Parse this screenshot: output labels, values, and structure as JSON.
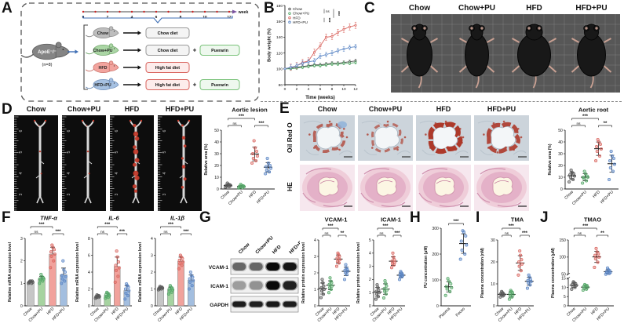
{
  "panel_letters": {
    "a": "A",
    "b": "B",
    "c": "C",
    "d": "D",
    "e": "E",
    "f": "F",
    "g": "G",
    "h": "H",
    "i": "I",
    "j": "J"
  },
  "groups": [
    "Chow",
    "Chow+PU",
    "HFD",
    "HFD+PU"
  ],
  "style": {
    "point_colors": [
      "#595959",
      "#55a868",
      "#d9655f",
      "#5b86c5"
    ],
    "bar_colors": [
      "#c6c6c6",
      "#a6d3a0",
      "#f1a29c",
      "#a3bedf"
    ],
    "mouse_fills": [
      "#bdbdbd",
      "#abd6a5",
      "#f2a49e",
      "#a6c1e2"
    ],
    "mouse_strokes": [
      "#8d8d8d",
      "#77aa71",
      "#cc756d",
      "#7291bb"
    ],
    "accent_blue": "#3f6fb5",
    "timeline_dot": "#cc2222",
    "arrow_purple": "#7a52a0",
    "plaque_red": "#c23a2b",
    "chow_box": "#9a9a9a",
    "hfd_box": "#d9655f",
    "pu_box": "#79c279"
  },
  "panel_a": {
    "founder": {
      "strain": "ApoE⁻/⁻",
      "n": "(n=8)"
    },
    "timeline": {
      "ticks": [
        0,
        2,
        4,
        6,
        8,
        10,
        12
      ],
      "unit": "week"
    },
    "plus_sign": "+",
    "rows": [
      {
        "group": "Chow",
        "diet": "Chow diet",
        "diet_type": "chow",
        "supplement": null
      },
      {
        "group": "Chow+PU",
        "diet": "Chow diet",
        "diet_type": "chow",
        "supplement": "Puerarin"
      },
      {
        "group": "HFD",
        "diet": "High fat diet",
        "diet_type": "hfd",
        "supplement": null
      },
      {
        "group": "HFD+PU",
        "diet": "High fat diet",
        "diet_type": "hfd",
        "supplement": "Puerarin"
      }
    ]
  },
  "panel_c": {
    "labels": [
      "Chow",
      "Chow+PU",
      "HFD",
      "HFD+PU"
    ]
  },
  "panel_d": {
    "labels": [
      "Chow",
      "Chow+PU",
      "HFD",
      "HFD+PU"
    ],
    "ruler_numbers": [
      "6",
      "5",
      "4",
      "3"
    ],
    "lesion_levels": [
      0.08,
      0.1,
      1,
      0.55
    ]
  },
  "panel_e": {
    "row_labels": [
      "Oil Red O",
      "HE"
    ],
    "col_labels": [
      "Chow",
      "Chow+PU",
      "HFD",
      "HFD+PU"
    ],
    "oil_levels": [
      0.45,
      0.3,
      1,
      0.8
    ]
  },
  "panel_g": {
    "lanes": [
      "Chow",
      "Chow+PU",
      "HFD",
      "HFD+PU"
    ],
    "bands": [
      "VCAM-1",
      "ICAM-1",
      "GAPDH"
    ],
    "band_intensities": [
      [
        0.5,
        0.5,
        1,
        0.92
      ],
      [
        0.28,
        0.32,
        1,
        0.85
      ],
      [
        0.88,
        0.86,
        0.9,
        0.88
      ]
    ],
    "band_heights": [
      10,
      11,
      7
    ]
  },
  "chart_data": [
    {
      "id": "body_weight",
      "type": "line",
      "title": "",
      "xlabel": "Time (weeks)",
      "ylabel": "Body weight (%)",
      "xlim": [
        0,
        12
      ],
      "xticks": [
        0,
        2,
        4,
        6,
        8,
        10,
        12
      ],
      "ylim": [
        80,
        180
      ],
      "yticks": [
        80,
        100,
        120,
        140,
        160,
        180
      ],
      "x": [
        0,
        1,
        2,
        3,
        4,
        5,
        6,
        7,
        8,
        9,
        10,
        11,
        12
      ],
      "series": [
        {
          "name": "Chow",
          "color": "#4d4d4d",
          "err": 2,
          "values": [
            100,
            101,
            102,
            103,
            104,
            105,
            105,
            106,
            107,
            107,
            108,
            109,
            110
          ]
        },
        {
          "name": "Chow+PU",
          "color": "#55a868",
          "err": 2,
          "values": [
            100,
            100,
            101,
            102,
            103,
            104,
            104,
            105,
            106,
            106,
            107,
            107,
            108
          ]
        },
        {
          "name": "HFD",
          "color": "#d9655f",
          "err": 4,
          "values": [
            100,
            102,
            104,
            108,
            110,
            121,
            129,
            140,
            141,
            146,
            150,
            153,
            155
          ]
        },
        {
          "name": "HFD+PU",
          "color": "#5b86c5",
          "err": 3,
          "values": [
            100,
            102,
            104,
            107,
            109,
            110,
            116,
            118,
            120,
            123,
            125,
            127,
            128
          ]
        }
      ],
      "legend_sig": [
        "ns",
        "***",
        "***"
      ],
      "legend_position": "top-left",
      "grid": false
    },
    {
      "id": "aortic_lesion",
      "type": "scatter",
      "title": "Aortic lesion",
      "ylabel": "Relative area (%)",
      "ylim": [
        0,
        50
      ],
      "yticks": [
        0,
        10,
        20,
        30,
        40,
        50
      ],
      "categories": [
        "Chow",
        "Chow+PU",
        "HFD",
        "HFD+PU"
      ],
      "groups": [
        {
          "points": [
            1.5,
            2,
            2.3,
            2.8,
            3,
            3.5,
            4,
            5
          ]
        },
        {
          "points": [
            0.8,
            1.2,
            1.6,
            2,
            2.2,
            2.6,
            3,
            3.8
          ]
        },
        {
          "points": [
            22,
            24,
            26,
            28,
            30,
            32,
            35,
            41
          ]
        },
        {
          "points": [
            13,
            14.5,
            16,
            17.5,
            19,
            20,
            22,
            26
          ]
        }
      ],
      "sig": [
        {
          "a": 0,
          "b": 2,
          "label": "***",
          "row": 1
        },
        {
          "a": 0,
          "b": 1,
          "label": "ns",
          "row": 0
        },
        {
          "a": 2,
          "b": 3,
          "label": "***",
          "row": 0
        }
      ]
    },
    {
      "id": "aortic_root",
      "type": "scatter",
      "title": "Aortic root",
      "ylabel": "Relative area (%)",
      "ylim": [
        0,
        50
      ],
      "yticks": [
        0,
        10,
        20,
        30,
        40,
        50
      ],
      "categories": [
        "Chow",
        "Chow+PU",
        "HFD",
        "HFD+PU"
      ],
      "groups": [
        {
          "points": [
            6,
            8,
            10,
            11,
            12,
            13,
            14,
            16
          ]
        },
        {
          "points": [
            5,
            7,
            9,
            10,
            10,
            11,
            13,
            15
          ]
        },
        {
          "points": [
            24,
            28,
            32,
            34,
            36,
            38,
            40,
            42
          ]
        },
        {
          "points": [
            8,
            15,
            18,
            21,
            24,
            26,
            28,
            32
          ]
        }
      ],
      "sig": [
        {
          "a": 0,
          "b": 2,
          "label": "***",
          "row": 1
        },
        {
          "a": 0,
          "b": 1,
          "label": "ns",
          "row": 0
        },
        {
          "a": 2,
          "b": 3,
          "label": "**",
          "row": 0
        }
      ]
    },
    {
      "id": "tnf_alpha",
      "type": "bar",
      "title": "TNF-α",
      "title_italic": true,
      "ylabel": "Relative mRNA expression level",
      "ylim": [
        0,
        3
      ],
      "yticks": [
        0,
        1,
        2,
        3
      ],
      "categories": [
        "Chow",
        "Chow+PU",
        "HFD",
        "HFD+PU"
      ],
      "groups": [
        {
          "points": [
            1,
            1,
            1.05,
            1.05,
            1.05,
            1.1,
            1.1,
            1.1
          ]
        },
        {
          "points": [
            1,
            1.1,
            1.15,
            1.2,
            1.2,
            1.25,
            1.3,
            1.4
          ]
        },
        {
          "points": [
            1.7,
            2,
            2.2,
            2.3,
            2.4,
            2.5,
            2.6,
            2.7
          ]
        },
        {
          "points": [
            1,
            1.1,
            1.2,
            1.3,
            1.35,
            1.5,
            1.6,
            2
          ]
        }
      ],
      "sig": [
        {
          "a": 0,
          "b": 2,
          "label": "***",
          "row": 1
        },
        {
          "a": 0,
          "b": 1,
          "label": "ns",
          "row": 0
        },
        {
          "a": 2,
          "b": 3,
          "label": "***",
          "row": 0
        }
      ]
    },
    {
      "id": "il6",
      "type": "bar",
      "title": "IL-6",
      "title_italic": true,
      "ylabel": "Relative mRNA expression level",
      "ylim": [
        0,
        8
      ],
      "yticks": [
        0,
        2,
        4,
        6,
        8
      ],
      "categories": [
        "Chow",
        "Chow+PU",
        "HFD",
        "HFD+PU"
      ],
      "groups": [
        {
          "points": [
            0.9,
            1,
            1,
            1.1,
            1.1,
            1.2,
            1.2,
            1.3
          ]
        },
        {
          "points": [
            0.9,
            1,
            1.1,
            1.2,
            1.3,
            1.4,
            1.5,
            1.6
          ]
        },
        {
          "points": [
            2.8,
            3.5,
            4.2,
            4.5,
            4.8,
            5.2,
            5.8,
            6.5
          ]
        },
        {
          "points": [
            0.8,
            1.2,
            1.5,
            1.8,
            2,
            2.2,
            2.4,
            2.6
          ]
        }
      ],
      "sig": [
        {
          "a": 0,
          "b": 2,
          "label": "***",
          "row": 1
        },
        {
          "a": 0,
          "b": 1,
          "label": "ns",
          "row": 0
        },
        {
          "a": 2,
          "b": 3,
          "label": "***",
          "row": 0
        }
      ]
    },
    {
      "id": "il1b",
      "type": "bar",
      "title": "IL-1β",
      "title_italic": true,
      "ylabel": "Relative mRNA expression level",
      "ylim": [
        0,
        4
      ],
      "yticks": [
        0,
        1,
        2,
        3,
        4
      ],
      "categories": [
        "Chow",
        "Chow+PU",
        "HFD",
        "HFD+PU"
      ],
      "groups": [
        {
          "points": [
            0.95,
            1,
            1,
            1.05,
            1.05,
            1.1,
            1.1,
            1.15
          ]
        },
        {
          "points": [
            0.7,
            0.8,
            0.9,
            0.95,
            1,
            1.05,
            1.1,
            1.2
          ]
        },
        {
          "points": [
            2.2,
            2.4,
            2.5,
            2.6,
            2.7,
            2.8,
            2.9,
            3
          ]
        },
        {
          "points": [
            1,
            1.2,
            1.4,
            1.5,
            1.6,
            1.7,
            1.8,
            2
          ]
        }
      ],
      "sig": [
        {
          "a": 0,
          "b": 2,
          "label": "***",
          "row": 1
        },
        {
          "a": 0,
          "b": 1,
          "label": "ns",
          "row": 0
        },
        {
          "a": 2,
          "b": 3,
          "label": "***",
          "row": 0
        }
      ]
    },
    {
      "id": "vcam1",
      "type": "scatter",
      "title": "VCAM-1",
      "ylabel": "Relative protein expression level",
      "ylim": [
        0,
        4
      ],
      "yticks": [
        0,
        1,
        2,
        3,
        4
      ],
      "categories": [
        "Chow",
        "Chow+PU",
        "HFD",
        "HFD+PU"
      ],
      "groups": [
        {
          "points": [
            0.5,
            0.7,
            0.9,
            1,
            1.1,
            1.2,
            1.4,
            1.6
          ]
        },
        {
          "points": [
            0.8,
            1,
            1.1,
            1.2,
            1.3,
            1.4,
            1.5,
            1.7
          ]
        },
        {
          "points": [
            2.4,
            2.6,
            2.7,
            2.8,
            2.9,
            3,
            3.1,
            3.2
          ]
        },
        {
          "points": [
            1.6,
            1.9,
            2,
            2.1,
            2.15,
            2.2,
            2.3,
            2.5
          ]
        }
      ],
      "sig": [
        {
          "a": 0,
          "b": 2,
          "label": "***",
          "row": 1
        },
        {
          "a": 0,
          "b": 1,
          "label": "ns",
          "row": 0
        },
        {
          "a": 2,
          "b": 3,
          "label": "**",
          "row": 0
        }
      ]
    },
    {
      "id": "icam1",
      "type": "scatter",
      "title": "ICAM-1",
      "ylabel": "Relative protein expression level",
      "ylim": [
        0,
        5
      ],
      "yticks": [
        0,
        1,
        2,
        3,
        4,
        5
      ],
      "categories": [
        "Chow",
        "Chow+PU",
        "HFD",
        "HFD+PU"
      ],
      "groups": [
        {
          "points": [
            0.5,
            0.7,
            0.9,
            1,
            1.1,
            1.2,
            1.4,
            1.6
          ]
        },
        {
          "points": [
            0.6,
            0.9,
            1.1,
            1.2,
            1.3,
            1.5,
            1.7,
            1.9
          ]
        },
        {
          "points": [
            2.9,
            3.1,
            3.2,
            3.3,
            3.4,
            3.5,
            3.7,
            4
          ]
        },
        {
          "points": [
            2,
            2.2,
            2.25,
            2.3,
            2.35,
            2.4,
            2.5,
            2.6
          ]
        }
      ],
      "sig": [
        {
          "a": 0,
          "b": 2,
          "label": "***",
          "row": 1
        },
        {
          "a": 0,
          "b": 1,
          "label": "ns",
          "row": 0
        },
        {
          "a": 2,
          "b": 3,
          "label": "***",
          "row": 0
        }
      ]
    },
    {
      "id": "pu_concentration",
      "type": "scatter",
      "title": "",
      "ylabel": "PU concentration (μM)",
      "ylim": [
        0,
        300
      ],
      "yticks": [
        0,
        100,
        200,
        300
      ],
      "categories": [
        "Plasma",
        "Feces"
      ],
      "point_colors": [
        "#55a868",
        "#5b86c5"
      ],
      "groups": [
        {
          "points": [
            40,
            55,
            65,
            70,
            75,
            85,
            95,
            105
          ]
        },
        {
          "points": [
            180,
            200,
            215,
            235,
            250,
            270,
            285,
            290
          ]
        }
      ],
      "sig": [
        {
          "a": 0,
          "b": 1,
          "label": "***",
          "row": 0
        }
      ]
    },
    {
      "id": "tma",
      "type": "scatter",
      "title": "TMA",
      "ylabel": "Plasma concentration (nM)",
      "ylim": [
        0,
        30
      ],
      "yticks": [
        0,
        10,
        20,
        30
      ],
      "categories": [
        "Chow",
        "Chow+PU",
        "HFD",
        "HFD+PU"
      ],
      "groups": [
        {
          "points": [
            4,
            4.5,
            5,
            5,
            5.5,
            5.5,
            6,
            6.5
          ]
        },
        {
          "points": [
            3,
            4,
            4.5,
            5,
            5.5,
            6,
            6.5,
            7
          ]
        },
        {
          "points": [
            14,
            16,
            18,
            19,
            20,
            21,
            23,
            25
          ]
        },
        {
          "points": [
            8,
            9.5,
            10.5,
            11,
            11.5,
            12,
            13,
            14
          ]
        }
      ],
      "sig": [
        {
          "a": 0,
          "b": 2,
          "label": "***",
          "row": 1
        },
        {
          "a": 0,
          "b": 1,
          "label": "ns",
          "row": 0
        },
        {
          "a": 2,
          "b": 3,
          "label": "***",
          "row": 0
        }
      ]
    },
    {
      "id": "tmao",
      "type": "scatter",
      "title": "TMAO",
      "ylabel": "Plasma concentration (μM)",
      "axis_break": {
        "low": [
          0,
          15
        ],
        "low_ticks": [
          0,
          5,
          10,
          15
        ],
        "high": [
          50,
          150
        ],
        "high_ticks": [
          50,
          100,
          150
        ]
      },
      "categories": [
        "Chow",
        "Chow+PU",
        "HFD",
        "HFD+PU"
      ],
      "groups": [
        {
          "points": [
            9,
            10,
            10.5,
            11,
            11.5,
            12,
            12.5,
            13
          ]
        },
        {
          "points": [
            8.5,
            9,
            9.5,
            10,
            10.5,
            11,
            11,
            11.5
          ]
        },
        {
          "points": [
            70,
            85,
            95,
            100,
            105,
            110,
            115,
            125
          ]
        },
        {
          "points": [
            50,
            52,
            54,
            55,
            57,
            60,
            63,
            68
          ]
        }
      ],
      "sig": [
        {
          "a": 0,
          "b": 2,
          "label": "***",
          "row": 1
        },
        {
          "a": 0,
          "b": 1,
          "label": "ns",
          "row": 0
        },
        {
          "a": 2,
          "b": 3,
          "label": "**",
          "row": 0
        }
      ]
    }
  ]
}
